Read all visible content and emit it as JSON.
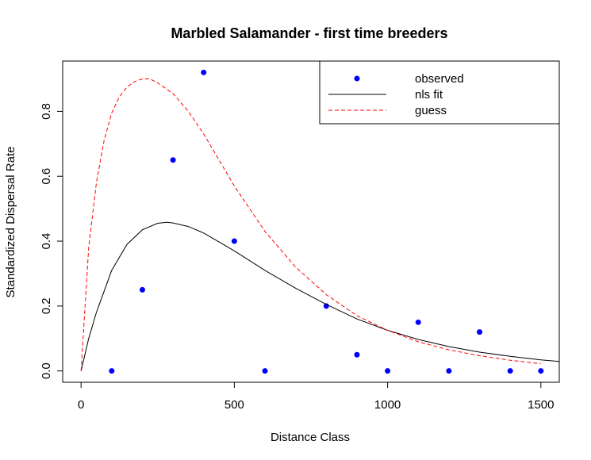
{
  "chart_data": {
    "type": "scatter",
    "title": "Marbled Salamander - first time breeders",
    "xlabel": "Distance Class",
    "ylabel": "Standardized Dispersal Rate",
    "xlim": [
      -60,
      1560
    ],
    "ylim": [
      -0.035,
      0.955
    ],
    "xticks": [
      0,
      500,
      1000,
      1500
    ],
    "yticks": [
      0.0,
      0.2,
      0.4,
      0.6,
      0.8
    ],
    "xtick_labels": [
      "0",
      "500",
      "1000",
      "1500"
    ],
    "ytick_labels": [
      "0.0",
      "0.2",
      "0.4",
      "0.6",
      "0.8"
    ],
    "grid": false,
    "legend": {
      "position": "top-right",
      "entries": [
        {
          "label": "observed",
          "kind": "point",
          "color": "#0000ff"
        },
        {
          "label": "nls fit",
          "kind": "line",
          "color": "#000000",
          "dash": "solid"
        },
        {
          "label": "guess",
          "kind": "line",
          "color": "#ff0000",
          "dash": "dashed"
        }
      ]
    },
    "series": [
      {
        "name": "observed",
        "kind": "points",
        "color": "#0000ff",
        "x": [
          100,
          200,
          300,
          400,
          500,
          600,
          800,
          900,
          1000,
          1100,
          1200,
          1300,
          1400,
          1500
        ],
        "y": [
          0.0,
          0.25,
          0.65,
          0.92,
          0.4,
          0.0,
          0.2,
          0.05,
          0.0,
          0.15,
          0.0,
          0.12,
          0.0,
          0.0
        ]
      },
      {
        "name": "nls fit",
        "kind": "line",
        "color": "#000000",
        "dash": "solid",
        "x": [
          0,
          25,
          50,
          100,
          150,
          200,
          250,
          280,
          300,
          350,
          400,
          500,
          600,
          700,
          800,
          900,
          1000,
          1100,
          1200,
          1300,
          1400,
          1500,
          1560
        ],
        "y": [
          0.0,
          0.1,
          0.18,
          0.31,
          0.39,
          0.435,
          0.455,
          0.458,
          0.456,
          0.445,
          0.425,
          0.37,
          0.31,
          0.255,
          0.205,
          0.16,
          0.125,
          0.097,
          0.075,
          0.058,
          0.045,
          0.034,
          0.029
        ]
      },
      {
        "name": "guess",
        "kind": "line",
        "color": "#ff0000",
        "dash": "dashed",
        "x": [
          0,
          25,
          50,
          75,
          100,
          125,
          150,
          175,
          200,
          225,
          250,
          300,
          350,
          400,
          450,
          500,
          600,
          700,
          800,
          900,
          1000,
          1100,
          1200,
          1300,
          1400,
          1500
        ],
        "y": [
          0.0,
          0.38,
          0.58,
          0.71,
          0.795,
          0.845,
          0.875,
          0.892,
          0.9,
          0.9,
          0.888,
          0.855,
          0.8,
          0.73,
          0.65,
          0.57,
          0.43,
          0.32,
          0.235,
          0.17,
          0.125,
          0.09,
          0.065,
          0.047,
          0.033,
          0.022
        ]
      }
    ]
  }
}
